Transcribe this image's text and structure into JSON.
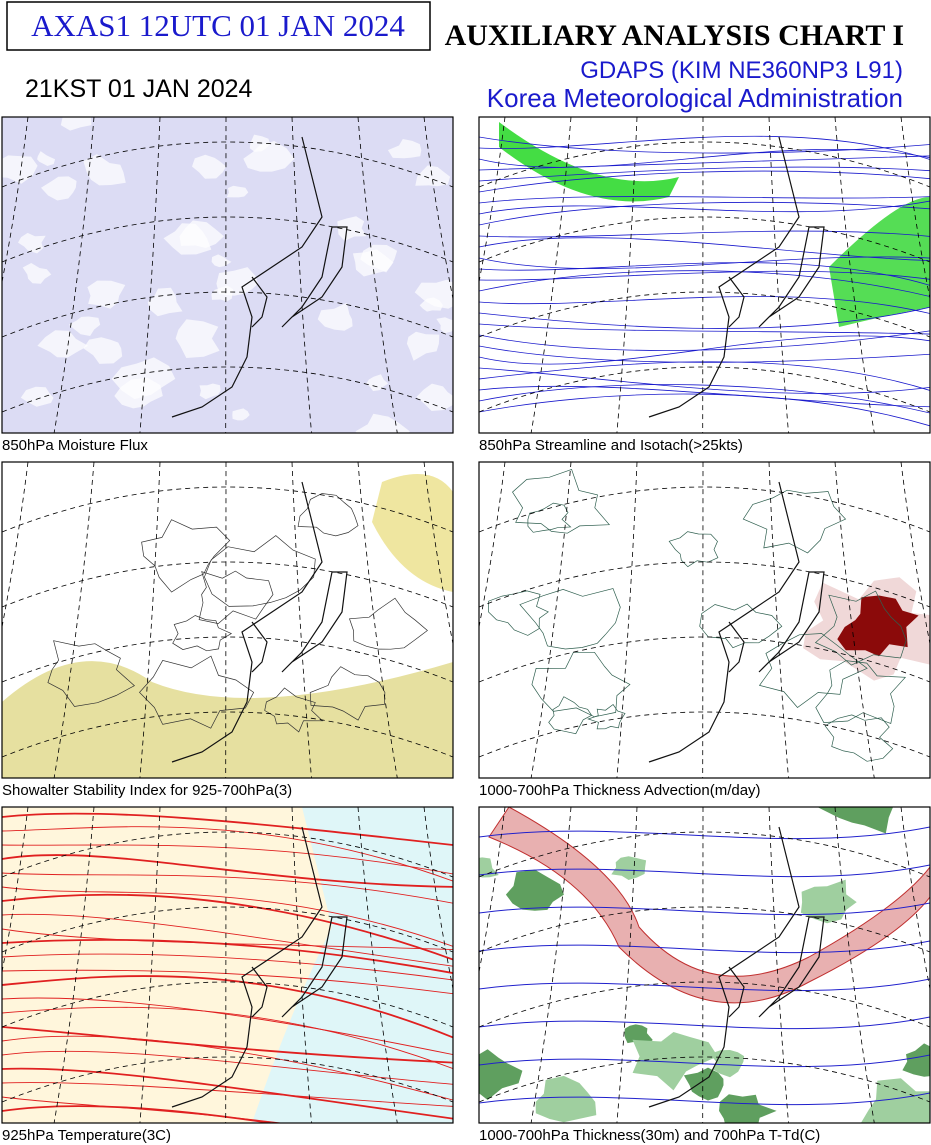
{
  "header": {
    "code_box": "AXAS1  12UTC 01 JAN 2024",
    "local_time": "21KST 01 JAN 2024",
    "title": "AUXILIARY ANALYSIS CHART  I",
    "model": "GDAPS (KIM NE360NP3 L91)",
    "agency": "Korea Meteorological Administration"
  },
  "panels": [
    {
      "caption": "850hPa Moisture Flux"
    },
    {
      "caption": "850hPa Streamline and Isotach(>25kts)"
    },
    {
      "caption": "Showalter Stability Index for 925-700hPa(3)"
    },
    {
      "caption": "1000-700hPa Thickness Advection(m/day)"
    },
    {
      "caption": "925hPa Temperature(3C)"
    },
    {
      "caption": "1000-700hPa Thickness(30m) and 700hPa T-Td(C)"
    }
  ]
}
